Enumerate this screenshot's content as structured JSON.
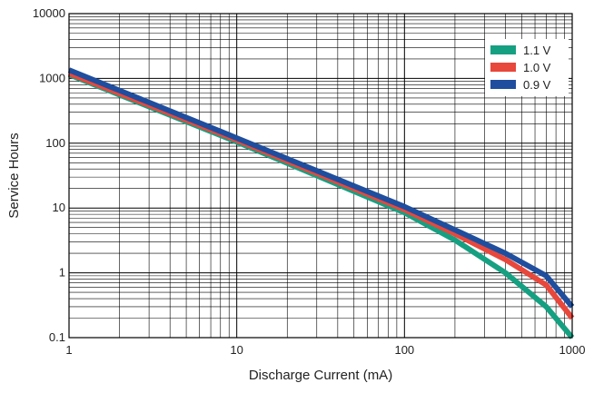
{
  "chart_data": {
    "type": "line",
    "title": "",
    "xlabel": "Discharge Current (mA)",
    "ylabel": "Service Hours",
    "xscale": "log",
    "yscale": "log",
    "xlim": [
      1,
      1000
    ],
    "ylim": [
      0.1,
      10000
    ],
    "x_tick_labels": [
      "1",
      "10",
      "100",
      "1000"
    ],
    "y_tick_labels": [
      "0.1",
      "1",
      "10",
      "100",
      "1000",
      "10000"
    ],
    "grid": true,
    "legend_position": "top-right",
    "series": [
      {
        "name": "1.1 V",
        "color": "#16a082",
        "points": [
          [
            1,
            1150
          ],
          [
            10,
            105
          ],
          [
            100,
            8.5
          ],
          [
            200,
            3.2
          ],
          [
            400,
            1.0
          ],
          [
            700,
            0.3
          ],
          [
            1000,
            0.1
          ]
        ]
      },
      {
        "name": "1.0 V",
        "color": "#e8473c",
        "points": [
          [
            1,
            1200
          ],
          [
            10,
            112
          ],
          [
            100,
            9.5
          ],
          [
            200,
            4.0
          ],
          [
            400,
            1.6
          ],
          [
            700,
            0.65
          ],
          [
            1000,
            0.2
          ]
        ]
      },
      {
        "name": "0.9 V",
        "color": "#1f4e9e",
        "points": [
          [
            1,
            1350
          ],
          [
            10,
            120
          ],
          [
            100,
            10.5
          ],
          [
            200,
            4.6
          ],
          [
            400,
            2.0
          ],
          [
            700,
            0.9
          ],
          [
            1000,
            0.3
          ]
        ]
      }
    ]
  }
}
